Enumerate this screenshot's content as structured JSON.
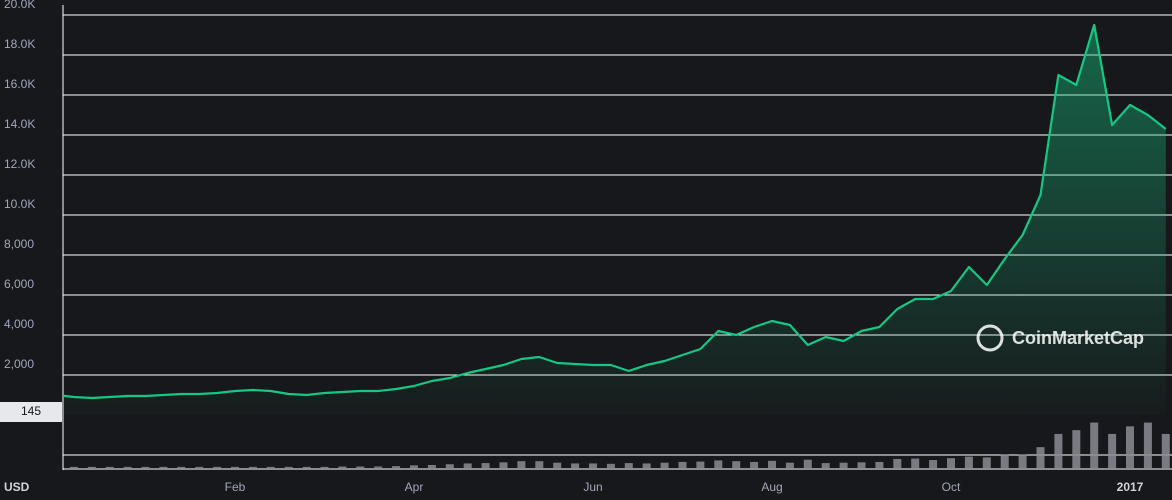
{
  "chart_data": [
    {
      "type": "line",
      "color": "#16c784",
      "categories": [
        null,
        null,
        null,
        null,
        null,
        null,
        null,
        null,
        null,
        null,
        "Feb",
        null,
        null,
        null,
        null,
        null,
        null,
        null,
        null,
        null,
        "Apr",
        null,
        null,
        null,
        null,
        null,
        null,
        null,
        null,
        null,
        "Jun",
        null,
        null,
        null,
        null,
        null,
        null,
        null,
        null,
        null,
        "Aug",
        null,
        null,
        null,
        null,
        null,
        null,
        null,
        null,
        null,
        "Oct",
        null,
        null,
        null,
        null,
        null,
        null,
        null,
        null,
        null,
        "2017",
        null,
        null
      ],
      "values": [
        1000,
        900,
        850,
        900,
        950,
        950,
        1000,
        1050,
        1050,
        1100,
        1200,
        1250,
        1200,
        1050,
        1000,
        1100,
        1150,
        1200,
        1200,
        1300,
        1450,
        1700,
        1850,
        2100,
        2300,
        2500,
        2800,
        2900,
        2600,
        2550,
        2500,
        2500,
        2200,
        2500,
        2700,
        3000,
        3300,
        4200,
        4000,
        4400,
        4700,
        4500,
        3500,
        3900,
        3700,
        4200,
        4400,
        5300,
        5800,
        5800,
        6200,
        7400,
        6500,
        7800,
        9000,
        11000,
        17000,
        16500,
        19500,
        14500,
        15500,
        15000,
        14300
      ],
      "ylim": [
        0,
        20500
      ],
      "yticks": [
        {
          "value": 2000,
          "label": "2,000"
        },
        {
          "value": 4000,
          "label": "4,000"
        },
        {
          "value": 6000,
          "label": "6,000"
        },
        {
          "value": 8000,
          "label": "8,000"
        },
        {
          "value": 10000,
          "label": "10.0K"
        },
        {
          "value": 12000,
          "label": "12.0K"
        },
        {
          "value": 14000,
          "label": "14.0K"
        },
        {
          "value": 16000,
          "label": "16.0K"
        },
        {
          "value": 18000,
          "label": "18.0K"
        },
        {
          "value": 20000,
          "label": "20.0K"
        }
      ],
      "grid": true,
      "currency_label": "USD",
      "watermark": "CoinMarketCap"
    },
    {
      "type": "bar",
      "color": "#8a8d93",
      "label": "145",
      "values": [
        0.4,
        0.3,
        0.3,
        0.3,
        0.3,
        0.3,
        0.3,
        0.3,
        0.3,
        0.3,
        0.3,
        0.3,
        0.3,
        0.3,
        0.3,
        0.3,
        0.4,
        0.4,
        0.4,
        0.5,
        0.7,
        0.8,
        1,
        1.2,
        1.3,
        1.5,
        1.8,
        1.8,
        1.4,
        1.2,
        1.2,
        1.1,
        1.3,
        1.2,
        1.4,
        1.6,
        1.7,
        2,
        1.8,
        1.6,
        1.9,
        1.4,
        2.2,
        1.3,
        1.4,
        1.5,
        1.6,
        2.4,
        2.5,
        2.1,
        2.6,
        3,
        2.8,
        3.5,
        3.6,
        5.5,
        9,
        10,
        12,
        9,
        11,
        12,
        9
      ],
      "ylim": [
        0,
        14
      ]
    }
  ]
}
